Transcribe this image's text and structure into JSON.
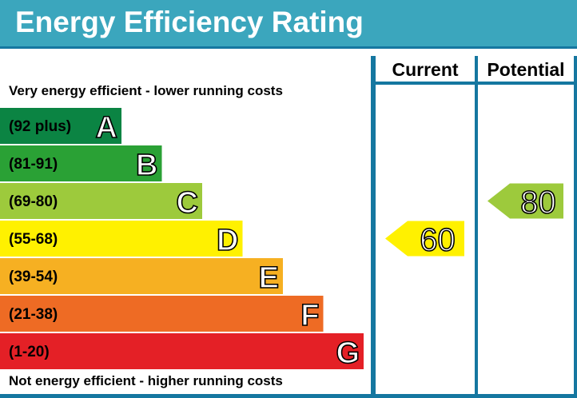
{
  "title": "Energy Efficiency Rating",
  "top_label": "Very energy efficient - lower running costs",
  "bottom_label": "Not energy efficient - higher running costs",
  "columns": {
    "current": "Current",
    "potential": "Potential"
  },
  "colors": {
    "header": "#3ba6bd",
    "frame": "#1577a0"
  },
  "chart_data": {
    "type": "bar",
    "title": "Energy Efficiency Rating",
    "bands": [
      {
        "letter": "A",
        "range": "(92 plus)",
        "color": "#0b8443"
      },
      {
        "letter": "B",
        "range": "(81-91)",
        "color": "#2aa135"
      },
      {
        "letter": "C",
        "range": "(69-80)",
        "color": "#9dca3c"
      },
      {
        "letter": "D",
        "range": "(55-68)",
        "color": "#fff100"
      },
      {
        "letter": "E",
        "range": "(39-54)",
        "color": "#f6b022"
      },
      {
        "letter": "F",
        "range": "(21-38)",
        "color": "#ee6b24"
      },
      {
        "letter": "G",
        "range": "(1-20)",
        "color": "#e42026"
      }
    ],
    "ratings": {
      "current": {
        "value": 60,
        "band": "D",
        "color": "#fff100"
      },
      "potential": {
        "value": 80,
        "band": "C",
        "color": "#9dca3c"
      }
    }
  }
}
